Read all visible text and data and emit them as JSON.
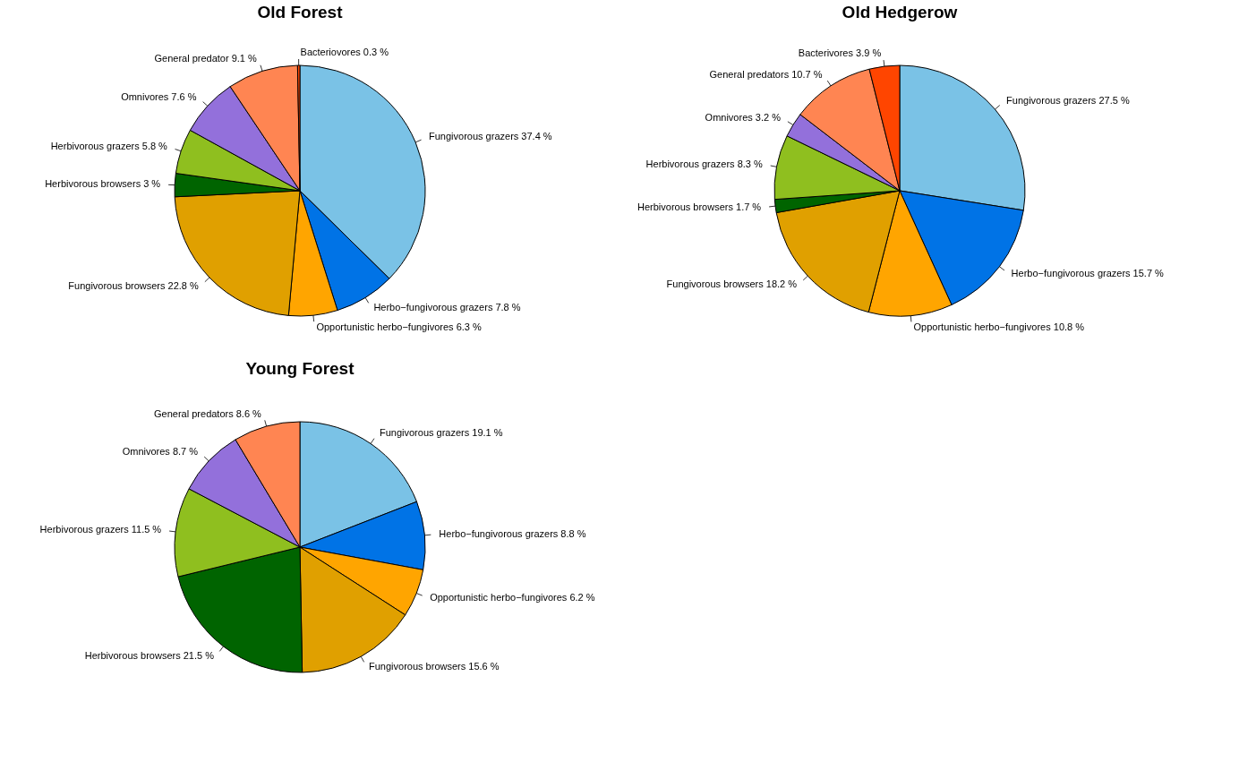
{
  "chart_data": [
    {
      "type": "pie",
      "title": "Old Forest",
      "categories": [
        "Fungivorous grazers",
        "Herbo−fungivorous grazers",
        "Opportunistic herbo−fungivores",
        "Fungivorous browsers",
        "Herbivorous browsers",
        "Herbivorous grazers",
        "Omnivores",
        "General predator",
        "Bacteriovores"
      ],
      "values": [
        37.4,
        7.8,
        6.3,
        22.8,
        3,
        5.8,
        7.6,
        9.1,
        0.3
      ],
      "value_labels": [
        "37.4 %",
        "7.8 %",
        "6.3 %",
        "22.8 %",
        "3 %",
        "5.8 %",
        "7.6 %",
        "9.1 %",
        "0.3 %"
      ],
      "colors": [
        "#7ac2e6",
        "#0073e6",
        "#ffa500",
        "#e0a000",
        "#006400",
        "#8fbf1f",
        "#9370db",
        "#ff8552",
        "#ff4500"
      ]
    },
    {
      "type": "pie",
      "title": "Old Hedgerow",
      "categories": [
        "Fungivorous grazers",
        "Herbo−fungivorous grazers",
        "Opportunistic herbo−fungivores",
        "Fungivorous browsers",
        "Herbivorous browsers",
        "Herbivorous grazers",
        "Omnivores",
        "General predators",
        "Bacterivores"
      ],
      "values": [
        27.5,
        15.7,
        10.8,
        18.2,
        1.7,
        8.3,
        3.2,
        10.7,
        3.9
      ],
      "value_labels": [
        "27.5 %",
        "15.7 %",
        "10.8 %",
        "18.2 %",
        "1.7 %",
        "8.3 %",
        "3.2 %",
        "10.7 %",
        "3.9 %"
      ],
      "colors": [
        "#7ac2e6",
        "#0073e6",
        "#ffa500",
        "#e0a000",
        "#006400",
        "#8fbf1f",
        "#9370db",
        "#ff8552",
        "#ff4500"
      ]
    },
    {
      "type": "pie",
      "title": "Young Forest",
      "categories": [
        "Fungivorous grazers",
        "Herbo−fungivorous grazers",
        "Opportunistic herbo−fungivores",
        "Fungivorous browsers",
        "Herbivorous browsers",
        "Herbivorous grazers",
        "Omnivores",
        "General predators"
      ],
      "values": [
        19.1,
        8.8,
        6.2,
        15.6,
        21.5,
        11.5,
        8.7,
        8.6
      ],
      "value_labels": [
        "19.1 %",
        "8.8 %",
        "6.2 %",
        "15.6 %",
        "21.5 %",
        "11.5 %",
        "8.7 %",
        "8.6 %"
      ],
      "colors": [
        "#7ac2e6",
        "#0073e6",
        "#ffa500",
        "#e0a000",
        "#006400",
        "#8fbf1f",
        "#9370db",
        "#ff8552"
      ]
    }
  ]
}
